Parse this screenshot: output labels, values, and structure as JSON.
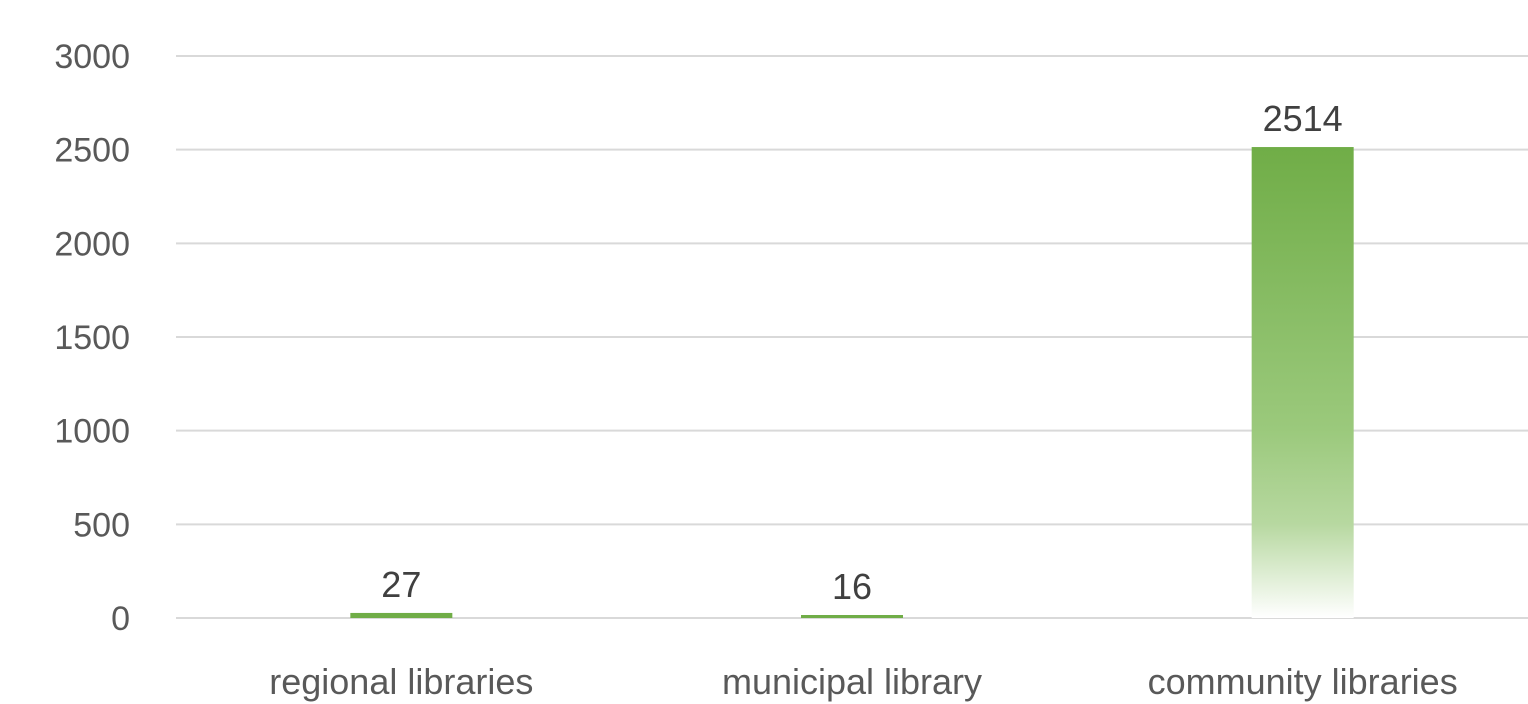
{
  "chart_data": {
    "type": "bar",
    "categories": [
      "regional libraries",
      "municipal library",
      "community libraries"
    ],
    "values": [
      27,
      16,
      2514
    ],
    "title": "",
    "xlabel": "",
    "ylabel": "",
    "ylim": [
      0,
      3000
    ],
    "yticks": [
      0,
      500,
      1000,
      1500,
      2000,
      2500,
      3000
    ],
    "grid": true,
    "data_labels": true,
    "colors": {
      "bar": "#70ad47",
      "grid": "#d9d9d9",
      "text": "#595959"
    }
  }
}
